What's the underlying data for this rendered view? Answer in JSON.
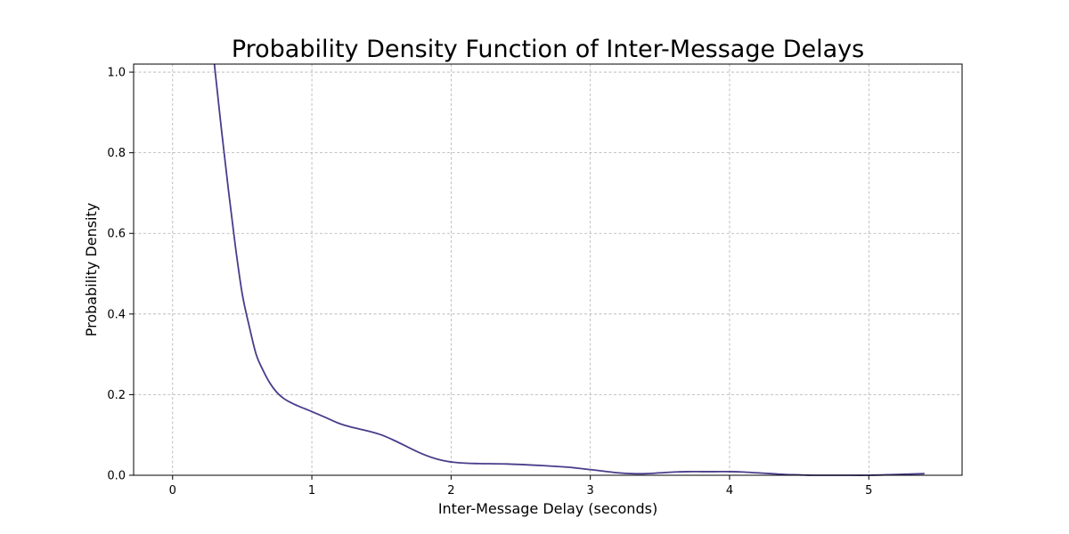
{
  "chart_data": {
    "type": "line",
    "title": "Probability Density Function of Inter-Message Delays",
    "xlabel": "Inter-Message Delay (seconds)",
    "ylabel": "Probability Density",
    "xlim": [
      -0.28,
      5.67
    ],
    "ylim": [
      0,
      1.02
    ],
    "xticks": [
      0,
      1,
      2,
      3,
      4,
      5
    ],
    "xtick_labels": [
      "0",
      "1",
      "2",
      "3",
      "4",
      "5"
    ],
    "yticks": [
      0.0,
      0.2,
      0.4,
      0.6,
      0.8,
      1.0
    ],
    "ytick_labels": [
      "0.0",
      "0.2",
      "0.4",
      "0.6",
      "0.8",
      "1.0"
    ],
    "grid": true,
    "colors": {
      "line": "#483d8b"
    },
    "series": [
      {
        "x": [
          0.3,
          0.35,
          0.4,
          0.45,
          0.5,
          0.55,
          0.6,
          0.65,
          0.7,
          0.75,
          0.8,
          0.85,
          0.9,
          0.95,
          1.0,
          1.1,
          1.2,
          1.3,
          1.4,
          1.5,
          1.6,
          1.7,
          1.8,
          1.9,
          2.0,
          2.1,
          2.2,
          2.4,
          2.6,
          2.8,
          2.9,
          3.0,
          3.1,
          3.2,
          3.3,
          3.4,
          3.5,
          3.6,
          3.7,
          3.8,
          3.9,
          4.0,
          4.1,
          4.2,
          4.3,
          4.4,
          4.5,
          4.6,
          4.8,
          5.0,
          5.2,
          5.4
        ],
        "y": [
          1.02,
          0.86,
          0.71,
          0.57,
          0.45,
          0.37,
          0.3,
          0.26,
          0.228,
          0.205,
          0.19,
          0.18,
          0.172,
          0.165,
          0.158,
          0.143,
          0.128,
          0.118,
          0.11,
          0.1,
          0.085,
          0.068,
          0.052,
          0.04,
          0.033,
          0.03,
          0.029,
          0.028,
          0.025,
          0.021,
          0.018,
          0.014,
          0.01,
          0.006,
          0.004,
          0.004,
          0.006,
          0.008,
          0.009,
          0.009,
          0.009,
          0.009,
          0.008,
          0.006,
          0.004,
          0.002,
          0.001,
          0.0,
          0.0,
          0.0,
          0.002,
          0.004
        ]
      }
    ]
  }
}
